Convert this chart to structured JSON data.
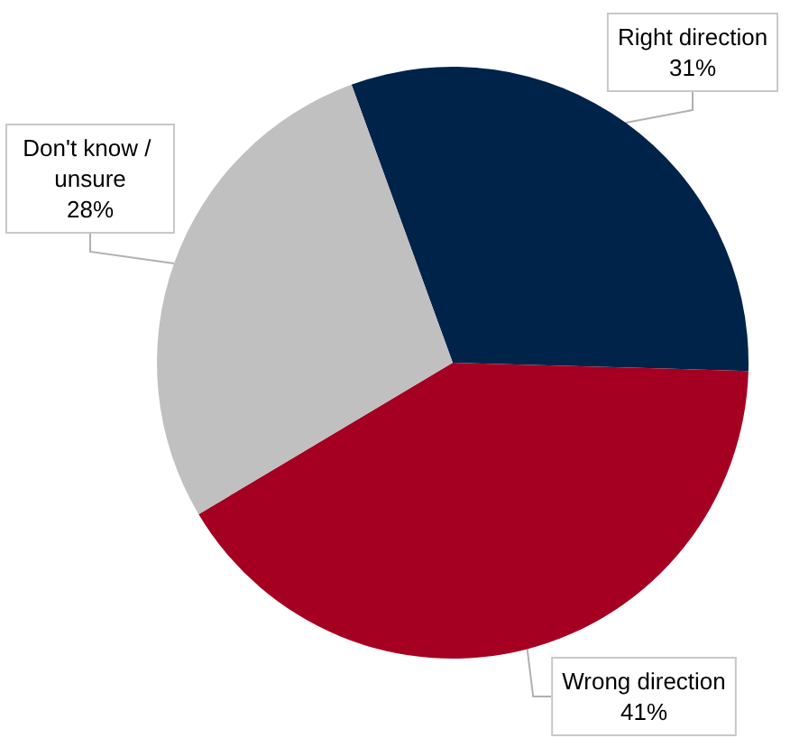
{
  "chart_data": {
    "type": "pie",
    "categories": [
      "Right direction",
      "Wrong direction",
      "Don't know / unsure"
    ],
    "values": [
      31,
      41,
      28
    ],
    "value_labels": [
      "31%",
      "41%",
      "28%"
    ],
    "colors": [
      "#00234a",
      "#a50021",
      "#c0c0c0"
    ]
  }
}
